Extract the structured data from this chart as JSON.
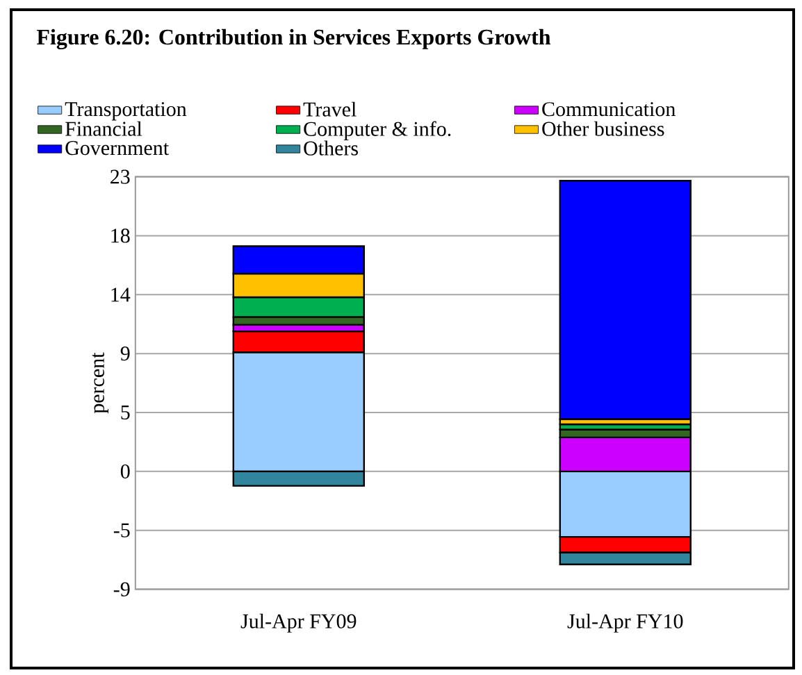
{
  "chart_data": {
    "type": "bar",
    "title": "Figure 6.20: Contribution in Services Exports Growth",
    "ylabel": "percent",
    "categories": [
      "Jul-Apr FY09",
      "Jul-Apr FY10"
    ],
    "stacked": true,
    "series": [
      {
        "name": "Transportation",
        "color": "#99ccff",
        "values": [
          9.1,
          -5.0
        ]
      },
      {
        "name": "Travel",
        "color": "#ff0000",
        "values": [
          1.6,
          -1.2
        ]
      },
      {
        "name": "Communication",
        "color": "#cc00ff",
        "values": [
          0.5,
          2.6
        ]
      },
      {
        "name": "Financial",
        "color": "#336622",
        "values": [
          0.6,
          0.6
        ]
      },
      {
        "name": "Computer & info.",
        "color": "#00b050",
        "values": [
          1.5,
          0.4
        ]
      },
      {
        "name": "Other business",
        "color": "#ffc000",
        "values": [
          1.8,
          0.4
        ]
      },
      {
        "name": "Government",
        "color": "#0000ff",
        "values": [
          2.1,
          18.2
        ]
      },
      {
        "name": "Others",
        "color": "#31859c",
        "values": [
          -1.1,
          -0.9
        ]
      }
    ],
    "ylim": [
      -9,
      22.5
    ],
    "yticks": [
      {
        "value": -9,
        "label": "-9"
      },
      {
        "value": -4.5,
        "label": "-5"
      },
      {
        "value": 0,
        "label": "0"
      },
      {
        "value": 4.5,
        "label": "5"
      },
      {
        "value": 9,
        "label": "9"
      },
      {
        "value": 13.5,
        "label": "14"
      },
      {
        "value": 18,
        "label": "18"
      },
      {
        "value": 22.5,
        "label": "23"
      }
    ],
    "grid": "y",
    "legend": "top"
  }
}
